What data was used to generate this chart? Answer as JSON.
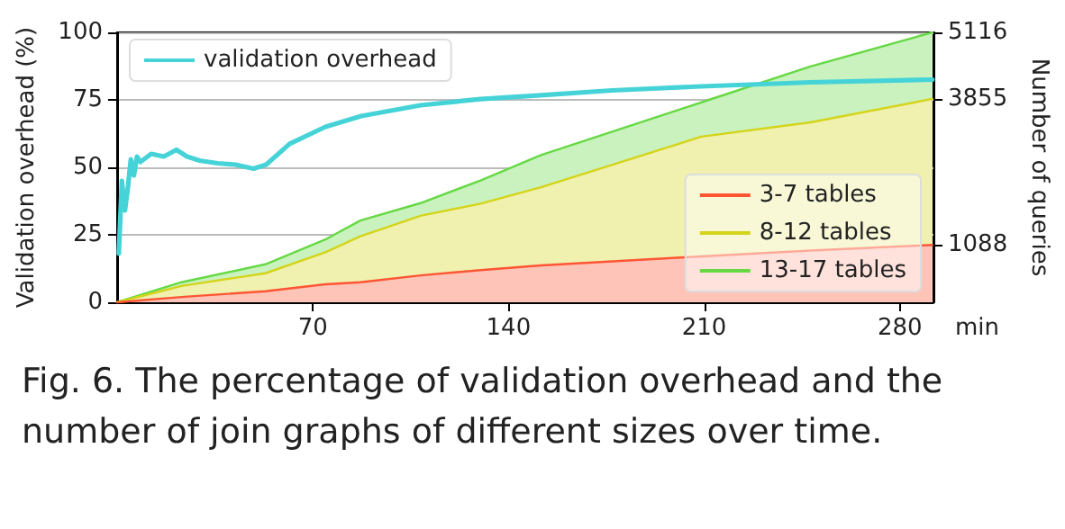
{
  "chart_data": {
    "type": "line",
    "ylabel": "Validation overhead (%)",
    "y2label": "Number of queries",
    "xlabel": "min",
    "annotations": [
      "Fig. 6.  The percentage of validation overhead and the number of join graphs of different sizes over time."
    ],
    "xlim": [
      0,
      292
    ],
    "xticks": [
      70,
      140,
      210,
      280
    ],
    "ylim": [
      0,
      100
    ],
    "yticks": [
      0,
      25,
      50,
      75,
      100
    ],
    "y2lim": [
      0,
      5116
    ],
    "y2ticks": [
      1088,
      3855,
      5116
    ],
    "grid": "y",
    "marker": "none",
    "line_style": "solid",
    "stacked": true,
    "legend": [
      "top left",
      "bottom right"
    ],
    "series": [
      {
        "name": "validation overhead",
        "color": "#45d3d8",
        "x": [
          0.6,
          1.7,
          2.8,
          3.9,
          4.9,
          6,
          7.1,
          8.3,
          12.2,
          16.7,
          21.2,
          25,
          29.5,
          36,
          42.4,
          48.8,
          53.3,
          61.7,
          74.5,
          87.3,
          108.5,
          130,
          151.6,
          177,
          209,
          248,
          291.6
        ],
        "values": [
          18,
          45,
          34,
          43,
          53,
          47,
          54,
          52,
          55,
          54,
          56.5,
          54,
          52.5,
          51.5,
          51,
          49.5,
          51,
          58.7,
          65,
          69,
          73,
          75.3,
          76.7,
          78.5,
          80,
          81.5,
          82.5
        ]
      },
      {
        "name": "3-7 tables",
        "type": "area",
        "axis": "y2",
        "color": "#ff5533",
        "x": [
          0,
          23,
          53,
          74.5,
          87,
          108.5,
          130,
          151.6,
          209,
          248,
          291.6
        ],
        "values": [
          0,
          100,
          210,
          340,
          380,
          510,
          610,
          700,
          870,
          980,
          1088
        ]
      },
      {
        "name": "8-12 tables",
        "type": "area",
        "axis": "y2",
        "color": "#d4d41a",
        "x": [
          0,
          23,
          53,
          74.5,
          87,
          108.5,
          130,
          151.6,
          209,
          248,
          291.6
        ],
        "values": [
          0,
          210,
          340,
          610,
          870,
          1130,
          1260,
          1480,
          2270,
          2430,
          2767
        ]
      },
      {
        "name": "13-17 tables",
        "type": "area",
        "axis": "y2",
        "color": "#66d944",
        "x": [
          0,
          23,
          53,
          74.5,
          87,
          108.5,
          130,
          151.6,
          209,
          248,
          291.6
        ],
        "values": [
          0,
          70,
          170,
          240,
          300,
          240,
          440,
          610,
          650,
          1060,
          1261
        ]
      }
    ]
  }
}
